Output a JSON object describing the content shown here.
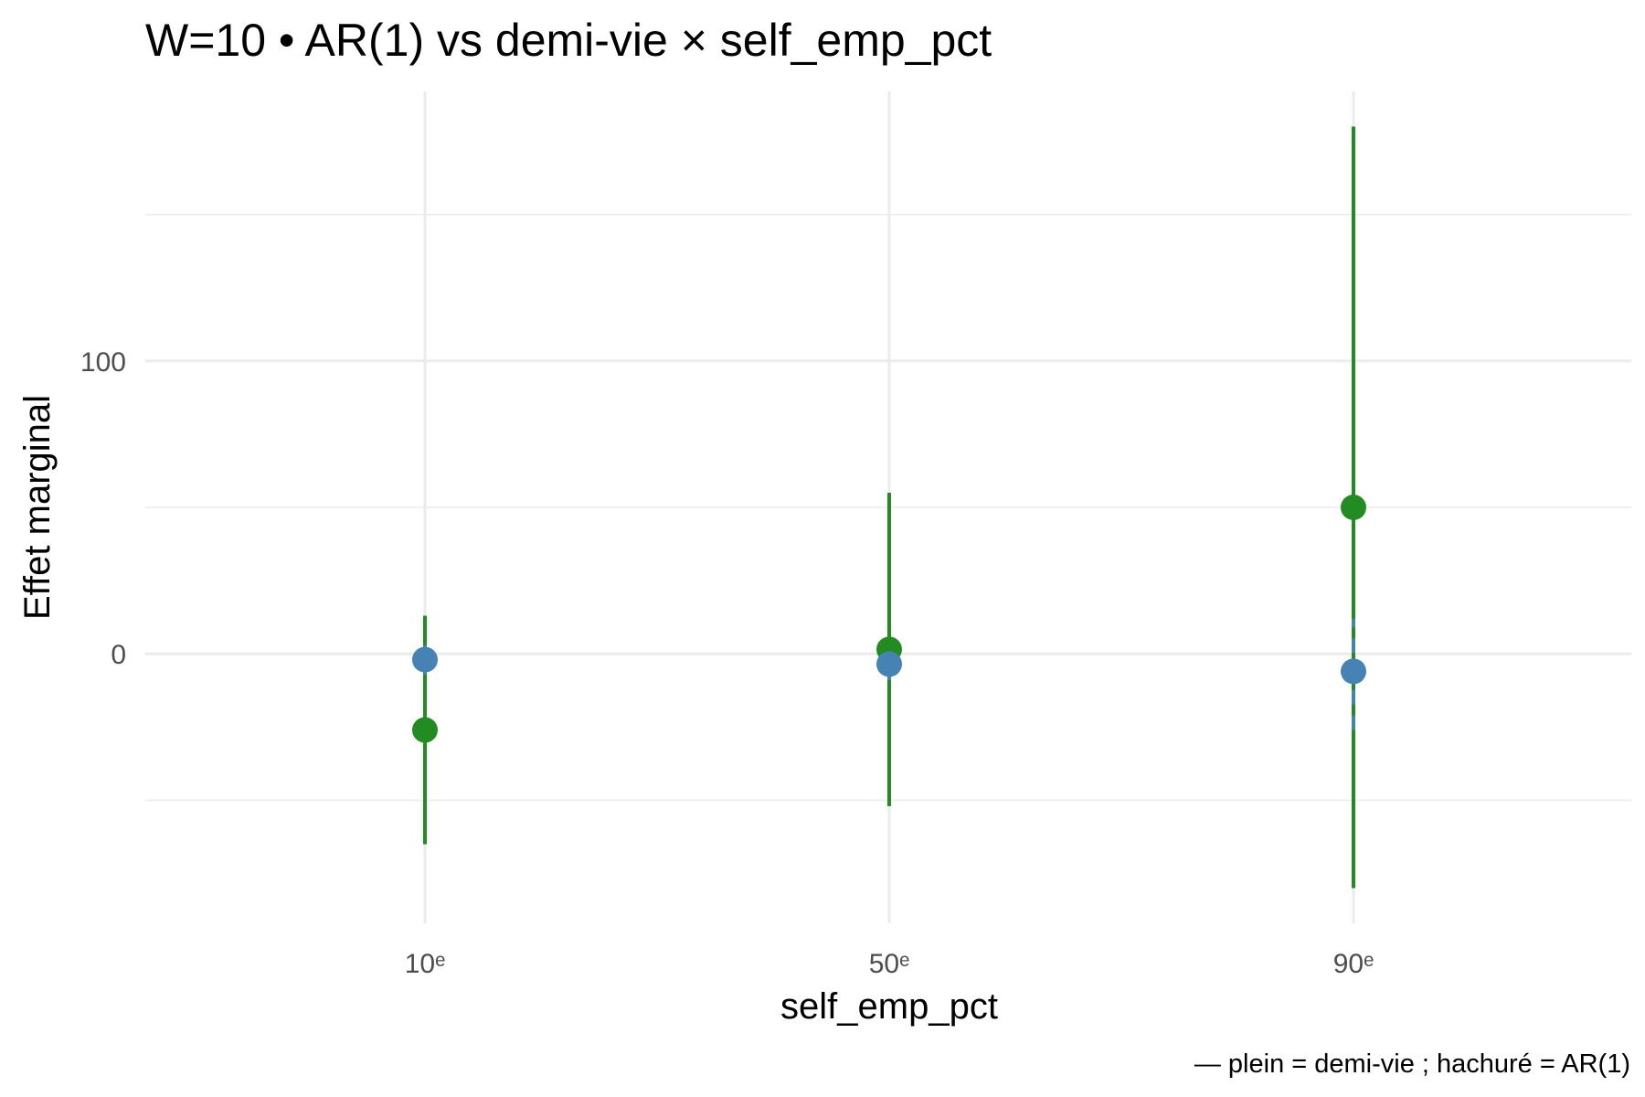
{
  "chart_data": {
    "type": "scatter",
    "title": "W=10 • AR(1) vs demi-vie × self_emp_pct",
    "xlabel": "self_emp_pct",
    "ylabel": "Effet marginal",
    "caption": "— plein = demi-vie ; hachuré = AR(1)",
    "categories": [
      "10ᵉ",
      "50ᵉ",
      "90ᵉ"
    ],
    "y_ticks": [
      0,
      100
    ],
    "y_tick_labels": [
      "0",
      "100"
    ],
    "y_minor_ticks": [
      -50,
      50,
      150
    ],
    "ylim": [
      -92,
      192
    ],
    "grid": true,
    "legend": "none",
    "series": [
      {
        "color": "#228B22",
        "line_style": "solid",
        "values": [
          -26,
          1.5,
          50
        ],
        "lower": [
          -65,
          -52,
          -80
        ],
        "upper": [
          13,
          55,
          180
        ]
      },
      {
        "color": "#4682B4",
        "line_style": "dashed",
        "values": [
          -2,
          -3.5,
          -6
        ],
        "lower": [
          -7,
          -9,
          -26
        ],
        "upper": [
          3,
          2,
          12
        ]
      }
    ]
  }
}
